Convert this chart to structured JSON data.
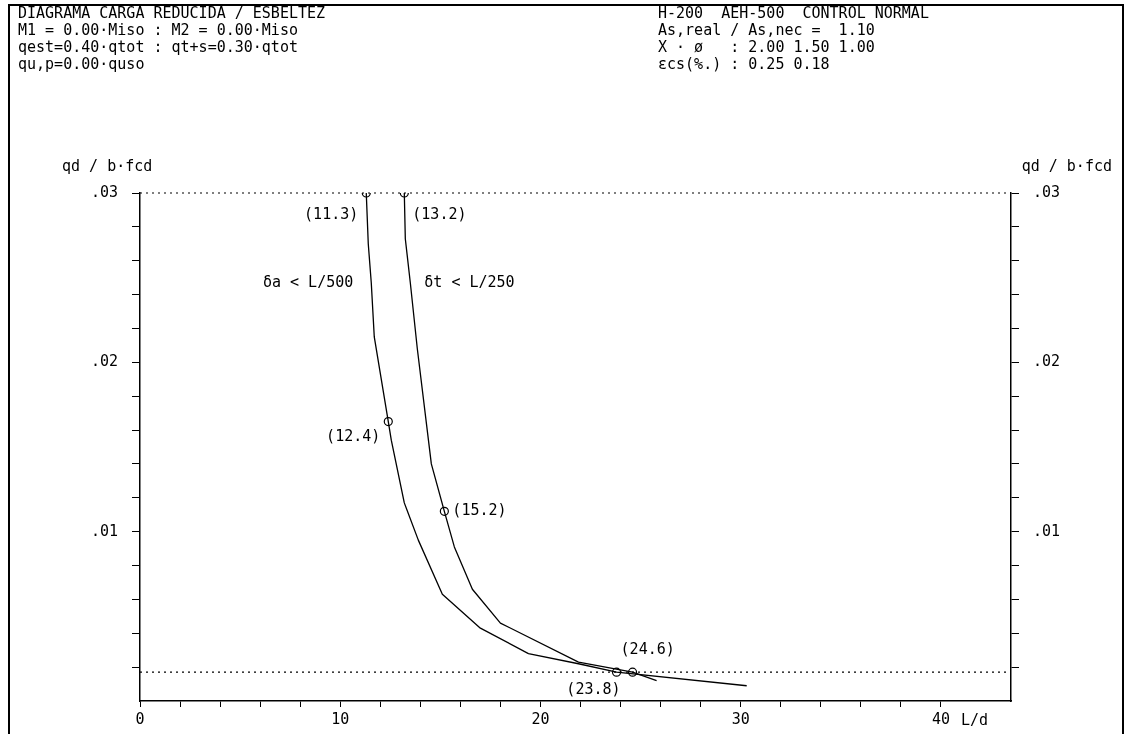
{
  "chart_data": {
    "type": "line",
    "title": "DIAGRAMA CARGA REDUCIDA / ESBELTEZ",
    "annotations": [
      "M1 = 0.00·Miso : M2 = 0.00·Miso",
      "qest=0.40·qtot : qt+s=0.30·qtot",
      "qu,p=0.00·quso",
      "H-200  AEH-500  CONTROL NORMAL",
      "As,real / As,nec =  1.10",
      "X · ø   : 2.00 1.50 1.00",
      "εcs(%.) : 0.25 0.18",
      {
        "text": "(11.3)",
        "x": 11.3,
        "y": 0.03
      },
      {
        "text": "(13.2)",
        "x": 13.2,
        "y": 0.03
      },
      {
        "text": "(12.4)",
        "x": 12.4,
        "y": 0.0165
      },
      {
        "text": "(15.2)",
        "x": 15.2,
        "y": 0.0112
      },
      {
        "text": "(23.8)",
        "x": 23.8,
        "y": 0.0017
      },
      {
        "text": "(24.6)",
        "x": 24.6,
        "y": 0.0017
      }
    ],
    "xlabel": "L/d",
    "ylabel": "qd / b·fcd",
    "y2label": "qd / b·fcd",
    "series": [
      {
        "name": "δa < L/500",
        "color": "#000000",
        "marker": "none",
        "x": [
          11.3,
          11.4,
          11.55,
          11.7,
          12.4,
          12.55,
          13.2,
          13.9,
          15.1,
          17.0,
          19.4,
          21.9,
          23.8,
          30.3
        ],
        "values": [
          0.03,
          0.027,
          0.0247,
          0.0215,
          0.0165,
          0.0154,
          0.0117,
          0.0095,
          0.0063,
          0.0043,
          0.0028,
          0.0022,
          0.0017,
          0.0009
        ]
      },
      {
        "name": "δt < L/250",
        "color": "#000000",
        "marker": "none",
        "x": [
          13.2,
          13.25,
          13.5,
          13.85,
          14.55,
          15.2,
          15.7,
          16.6,
          18.0,
          21.9,
          24.6,
          25.8
        ],
        "values": [
          0.03,
          0.0273,
          0.0247,
          0.0208,
          0.014,
          0.0112,
          0.0091,
          0.0066,
          0.0046,
          0.0023,
          0.0017,
          0.0012
        ]
      },
      {
        "type": "scatter",
        "color": "#000000",
        "marker": "circle",
        "x": [
          11.3,
          13.2,
          12.4,
          15.2,
          23.8,
          24.6
        ],
        "values": [
          0.03,
          0.03,
          0.0165,
          0.0112,
          0.0017,
          0.0017
        ]
      }
    ],
    "xlim": [
      0,
      43.5
    ],
    "xticks": [
      0,
      {
        "value": 2,
        "label": null
      },
      {
        "value": 4,
        "label": null
      },
      {
        "value": 6,
        "label": null
      },
      {
        "value": 8,
        "label": null
      },
      10,
      {
        "value": 12,
        "label": null
      },
      {
        "value": 14,
        "label": null
      },
      {
        "value": 16,
        "label": null
      },
      {
        "value": 18,
        "label": null
      },
      20,
      {
        "value": 22,
        "label": null
      },
      {
        "value": 24,
        "label": null
      },
      {
        "value": 26,
        "label": null
      },
      {
        "value": 28,
        "label": null
      },
      30,
      {
        "value": 32,
        "label": null
      },
      {
        "value": 34,
        "label": null
      },
      {
        "value": 36,
        "label": null
      },
      {
        "value": 38,
        "label": null
      },
      40
    ],
    "ylim": [
      0,
      0.03
    ],
    "yticks": [
      {
        "value": 0.002,
        "label": null
      },
      {
        "value": 0.004,
        "label": null
      },
      {
        "value": 0.006,
        "label": null
      },
      {
        "value": 0.008,
        "label": null
      },
      {
        "value": 0.01,
        "label": ".01"
      },
      {
        "value": 0.012,
        "label": null
      },
      {
        "value": 0.014,
        "label": null
      },
      {
        "value": 0.016,
        "label": null
      },
      {
        "value": 0.018,
        "label": null
      },
      {
        "value": 0.02,
        "label": ".02"
      },
      {
        "value": 0.022,
        "label": null
      },
      {
        "value": 0.024,
        "label": null
      },
      {
        "value": 0.026,
        "label": null
      },
      {
        "value": 0.028,
        "label": null
      },
      {
        "value": 0.03,
        "label": ".03"
      }
    ],
    "y2lim": [
      0,
      0.03
    ],
    "y2ticks": [
      {
        "value": 0.002,
        "label": null
      },
      {
        "value": 0.004,
        "label": null
      },
      {
        "value": 0.006,
        "label": null
      },
      {
        "value": 0.008,
        "label": null
      },
      {
        "value": 0.01,
        "label": ".01"
      },
      {
        "value": 0.012,
        "label": null
      },
      {
        "value": 0.014,
        "label": null
      },
      {
        "value": 0.016,
        "label": null
      },
      {
        "value": 0.018,
        "label": null
      },
      {
        "value": 0.02,
        "label": ".02"
      },
      {
        "value": 0.022,
        "label": null
      },
      {
        "value": 0.024,
        "label": null
      },
      {
        "value": 0.026,
        "label": null
      },
      {
        "value": 0.028,
        "label": null
      },
      {
        "value": 0.03,
        "label": ".03"
      }
    ],
    "ref_lines": [
      {
        "axis": "y",
        "value": 0.03,
        "color": "#000000",
        "line_style": "dotted"
      },
      {
        "axis": "y",
        "value": 0.0017,
        "color": "#000000",
        "line_style": "dotted"
      }
    ],
    "grid": false,
    "legend": false,
    "line_style": "solid"
  }
}
